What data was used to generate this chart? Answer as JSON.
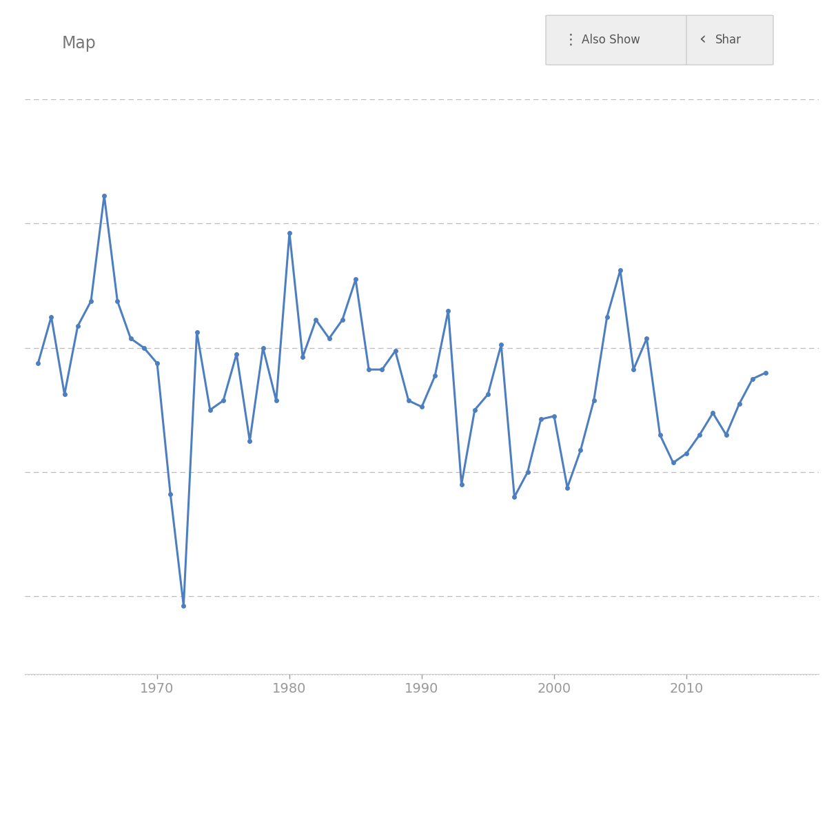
{
  "years": [
    1961,
    1962,
    1963,
    1964,
    1965,
    1966,
    1967,
    1968,
    1969,
    1970,
    1971,
    1972,
    1973,
    1974,
    1975,
    1976,
    1977,
    1978,
    1979,
    1980,
    1981,
    1982,
    1983,
    1984,
    1985,
    1986,
    1987,
    1988,
    1989,
    1990,
    1991,
    1992,
    1993,
    1994,
    1995,
    1996,
    1997,
    1998,
    1999,
    2000,
    2001,
    2002,
    2003,
    2004,
    2005,
    2006,
    2007,
    2008,
    2009,
    2010,
    2011,
    2012,
    2013,
    2014,
    2015,
    2016
  ],
  "gdp_growth": [
    6.0,
    7.5,
    5.0,
    7.2,
    8.0,
    11.4,
    8.0,
    6.8,
    6.5,
    6.0,
    1.8,
    -1.8,
    7.0,
    4.5,
    4.8,
    6.3,
    3.5,
    6.5,
    4.8,
    10.2,
    6.2,
    7.4,
    6.8,
    7.4,
    8.7,
    5.8,
    5.8,
    6.4,
    4.8,
    4.6,
    5.6,
    7.7,
    2.1,
    4.5,
    5.0,
    6.6,
    1.7,
    2.5,
    4.2,
    4.3,
    2.0,
    3.2,
    4.8,
    7.5,
    9.0,
    5.8,
    6.8,
    3.7,
    2.8,
    3.1,
    3.7,
    4.4,
    3.7,
    4.7,
    5.5,
    5.7
  ],
  "line_color": "#4d7ebf",
  "marker_color": "#4d7ebf",
  "background_color": "#ffffff",
  "grid_color": "#bbbbbb",
  "map_text": "Map",
  "also_show_text": "Also Show",
  "share_text": "Shar",
  "axis_color": "#cccccc",
  "tick_color": "#999999",
  "xlim_start": 1960,
  "xlim_end": 2020,
  "xticks": [
    1970,
    1980,
    1990,
    2000,
    2010
  ],
  "ylim_bottom": -4.0,
  "ylim_top": 14.5,
  "grid_values": [
    14.5,
    10.5,
    6.5,
    2.5,
    -1.5
  ]
}
